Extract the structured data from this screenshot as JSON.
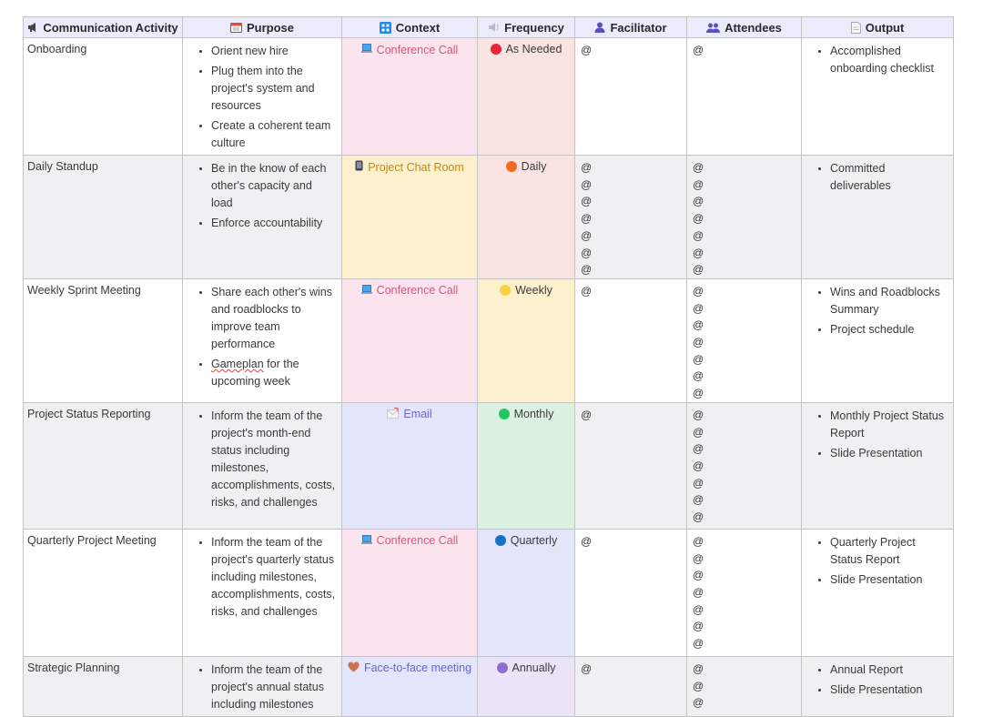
{
  "headers": {
    "activity": "Communication Activity",
    "purpose": "Purpose",
    "context": "Context",
    "frequency": "Frequency",
    "facilitator": "Facilitator",
    "attendees": "Attendees",
    "output": "Output"
  },
  "rows": [
    {
      "activity": "Onboarding",
      "purpose": [
        "Orient new hire",
        "Plug them into the project's system and resources",
        "Create a coherent team culture"
      ],
      "context": "Conference Call",
      "context_icon": "laptop-icon",
      "context_color": "#d45a7c",
      "context_bg": "#fbe4ee",
      "frequency": "As Needed",
      "freq_dot": "#e8233a",
      "freq_bg": "#fbe3e2",
      "facilitator": [
        "@"
      ],
      "attendees": [
        "@"
      ],
      "output": [
        "Accomplished onboarding checklist"
      ]
    },
    {
      "activity": "Daily Standup",
      "purpose": [
        "Be in the know of each other's capacity and load",
        "Enforce accountability"
      ],
      "context": "Project Chat Room",
      "context_icon": "phone-icon",
      "context_color": "#c28a12",
      "context_bg": "#fcf0cd",
      "frequency": "Daily",
      "freq_dot": "#f26b21",
      "freq_bg": "#fbe3e2",
      "facilitator": [
        "@",
        "@",
        "@",
        "@",
        "@",
        "@",
        "@"
      ],
      "attendees": [
        "@",
        "@",
        "@",
        "@",
        "@",
        "@",
        "@"
      ],
      "output": [
        "Committed deliverables"
      ]
    },
    {
      "activity": "Weekly Sprint Meeting",
      "purpose": [
        "Share each other's wins and roadblocks to improve team performance",
        "Gameplan for the upcoming week"
      ],
      "context": "Conference Call",
      "context_icon": "laptop-icon",
      "context_color": "#d45a7c",
      "context_bg": "#fbe4ee",
      "frequency": "Weekly",
      "freq_dot": "#f7d23c",
      "freq_bg": "#fcf0cd",
      "facilitator": [
        "@"
      ],
      "attendees": [
        "@",
        "@",
        "@",
        "@",
        "@",
        "@",
        "@"
      ],
      "output": [
        "Wins and Roadblocks Summary",
        "Project schedule"
      ]
    },
    {
      "activity": "Project Status Reporting",
      "purpose": [
        "Inform the team of the project's month-end status including milestones, accomplishments, costs, risks, and challenges"
      ],
      "context": "Email",
      "context_icon": "envelope-icon",
      "context_color": "#6d62d6",
      "context_bg": "#e3e5fb",
      "frequency": "Monthly",
      "freq_dot": "#22c55e",
      "freq_bg": "#dcf1e0",
      "facilitator": [
        "@"
      ],
      "attendees": [
        "@",
        "@",
        "@",
        "@",
        "@",
        "@",
        "@"
      ],
      "output": [
        "Monthly Project Status Report",
        "Slide Presentation"
      ]
    },
    {
      "activity": "Quarterly Project Meeting",
      "purpose": [
        "Inform the team of the project's quarterly status including milestones, accomplishments, costs, risks, and challenges"
      ],
      "context": "Conference Call",
      "context_icon": "laptop-icon",
      "context_color": "#d45a7c",
      "context_bg": "#fbe4ee",
      "frequency": "Quarterly",
      "freq_dot": "#1670c4",
      "freq_bg": "#e3e5fb",
      "facilitator": [
        "@"
      ],
      "attendees": [
        "@",
        "@",
        "@",
        "@",
        "@",
        "@",
        "@"
      ],
      "output": [
        "Quarterly Project Status Report",
        "Slide Presentation"
      ]
    },
    {
      "activity": "Strategic Planning",
      "purpose": [
        "Inform the team of the project's annual status including milestones"
      ],
      "context": "Face-to-face meeting",
      "context_icon": "heart-icon",
      "context_color": "#6d62d6",
      "context_bg": "#e3e5fb",
      "frequency": "Annually",
      "freq_dot": "#8e6fd0",
      "freq_bg": "#ebe3f8",
      "facilitator": [
        "@"
      ],
      "attendees": [
        "@",
        "@",
        "@"
      ],
      "output": [
        "Annual Report",
        "Slide Presentation"
      ]
    }
  ]
}
